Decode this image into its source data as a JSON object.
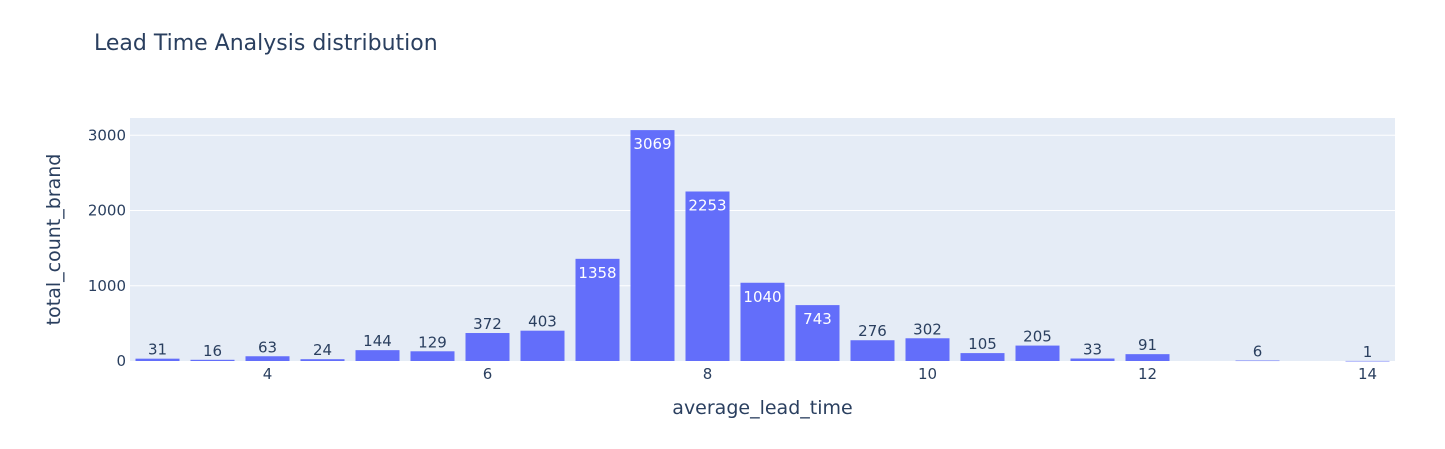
{
  "chart_data": {
    "type": "bar",
    "title": "Lead Time Analysis distribution",
    "xlabel": "average_lead_time",
    "ylabel": "total_count_brand",
    "x": [
      3,
      3.5,
      4,
      4.5,
      5,
      5.5,
      6,
      6.5,
      7,
      7.5,
      8,
      8.5,
      9,
      9.5,
      10,
      10.5,
      11,
      11.5,
      12,
      13,
      14
    ],
    "values": [
      31,
      16,
      63,
      24,
      144,
      129,
      372,
      403,
      1358,
      3069,
      2253,
      1040,
      743,
      276,
      302,
      105,
      205,
      33,
      91,
      6,
      1
    ],
    "bar_width": 0.5,
    "xlim": [
      2.75,
      14.25
    ],
    "ylim": [
      0,
      3230
    ],
    "xticks": [
      4,
      6,
      8,
      10,
      12,
      14
    ],
    "yticks": [
      0,
      1000,
      2000,
      3000
    ],
    "grid": true,
    "colors": {
      "bar": "#636efa",
      "plot_background": "#e5ecf6",
      "grid": "#ffffff",
      "text": "#2a3f5f"
    }
  }
}
